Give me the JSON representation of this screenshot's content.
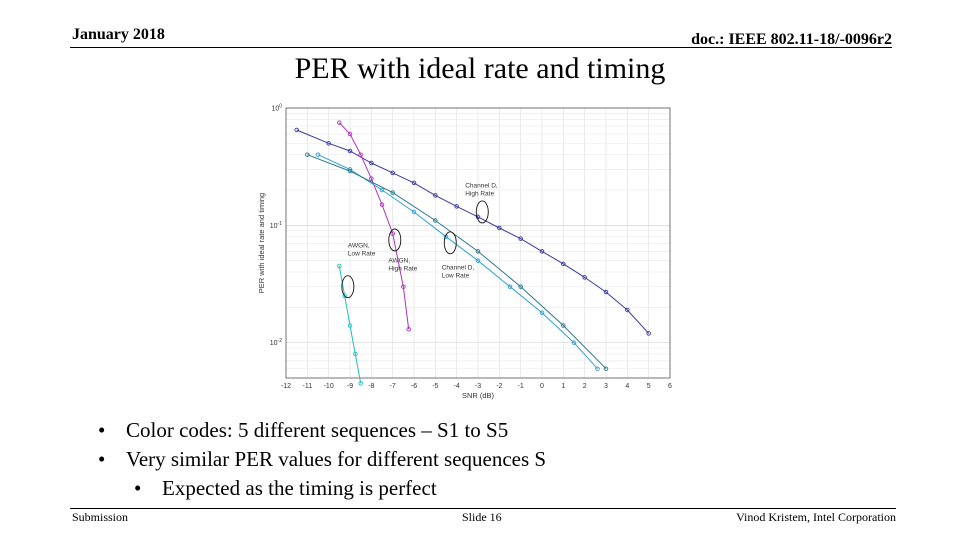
{
  "header": {
    "date": "January 2018",
    "doc": "doc.: IEEE 802.11-18/-0096r2"
  },
  "title": "PER with ideal rate and timing",
  "bullets": [
    "Color codes: 5 different sequences – S1 to S5",
    "Very similar PER values for different sequences S"
  ],
  "sub_bullets": [
    "Expected as the timing is perfect"
  ],
  "footer": {
    "left": "Submission",
    "center": "Slide 16",
    "right": "Vinod Kristem, Intel Corporation"
  },
  "chart_data": {
    "type": "line",
    "xlabel": "SNR (dB)",
    "ylabel": "PER with ideal rate and timing",
    "xlim": [
      -12,
      6
    ],
    "ylim": [
      0.005,
      1
    ],
    "y_scale": "log",
    "grid": true,
    "x_ticks": [
      "-12",
      "-11",
      "-10",
      "-9",
      "-8",
      "-7",
      "-6",
      "-5",
      "-4",
      "-3",
      "-2",
      "-1",
      "0",
      "1",
      "2",
      "3",
      "4",
      "5",
      "6"
    ],
    "y_ticks": [
      {
        "value": 1,
        "base": "10",
        "exp": "0"
      },
      {
        "value": 0.1,
        "base": "10",
        "exp": "-1"
      },
      {
        "value": 0.01,
        "base": "10",
        "exp": "-2"
      }
    ],
    "colors": [
      "#3a3aa0",
      "#b030c0",
      "#30a0d0",
      "#20c0c0",
      "#2a7a8a"
    ],
    "series": [
      {
        "x": [
          -11.5,
          -10,
          -9,
          -8,
          -7,
          -6,
          -5,
          -4,
          -3,
          -2,
          -1,
          0,
          1,
          2,
          3,
          4,
          5
        ],
        "y": [
          0.65,
          0.5,
          0.43,
          0.34,
          0.28,
          0.23,
          0.18,
          0.145,
          0.118,
          0.095,
          0.077,
          0.06,
          0.047,
          0.036,
          0.027,
          0.019,
          0.012
        ]
      },
      {
        "x": [
          -9.5,
          -9,
          -8.5,
          -8,
          -7.5,
          -7,
          -6.5,
          -6.25
        ],
        "y": [
          0.75,
          0.6,
          0.4,
          0.25,
          0.15,
          0.085,
          0.03,
          0.013
        ]
      },
      {
        "x": [
          -10.5,
          -9,
          -7.5,
          -6,
          -4.5,
          -3,
          -1.5,
          0,
          1.5,
          2.6
        ],
        "y": [
          0.4,
          0.3,
          0.2,
          0.13,
          0.08,
          0.05,
          0.03,
          0.018,
          0.01,
          0.006
        ]
      },
      {
        "x": [
          -9.5,
          -9.25,
          -9,
          -8.75,
          -8.5
        ],
        "y": [
          0.045,
          0.025,
          0.014,
          0.008,
          0.0045
        ]
      },
      {
        "x": [
          -11,
          -9,
          -7,
          -5,
          -3,
          -1,
          1,
          3
        ],
        "y": [
          0.4,
          0.29,
          0.19,
          0.11,
          0.06,
          0.03,
          0.014,
          0.006
        ]
      }
    ],
    "annotations": [
      {
        "text": [
          "Channel D,",
          "High Rate"
        ],
        "x": -3.6,
        "y": 0.21
      },
      {
        "text": [
          "AWGN,",
          "Low Rate"
        ],
        "x": -9.1,
        "y": 0.065
      },
      {
        "text": [
          "AWGN,",
          "High Rate"
        ],
        "x": -7.2,
        "y": 0.048
      },
      {
        "text": [
          "Channel D,",
          "Low Rate"
        ],
        "x": -4.7,
        "y": 0.042
      }
    ],
    "ellipses": [
      {
        "x": -2.8,
        "y": 0.13
      },
      {
        "x": -6.9,
        "y": 0.075
      },
      {
        "x": -4.3,
        "y": 0.071
      },
      {
        "x": -9.1,
        "y": 0.03
      }
    ]
  }
}
